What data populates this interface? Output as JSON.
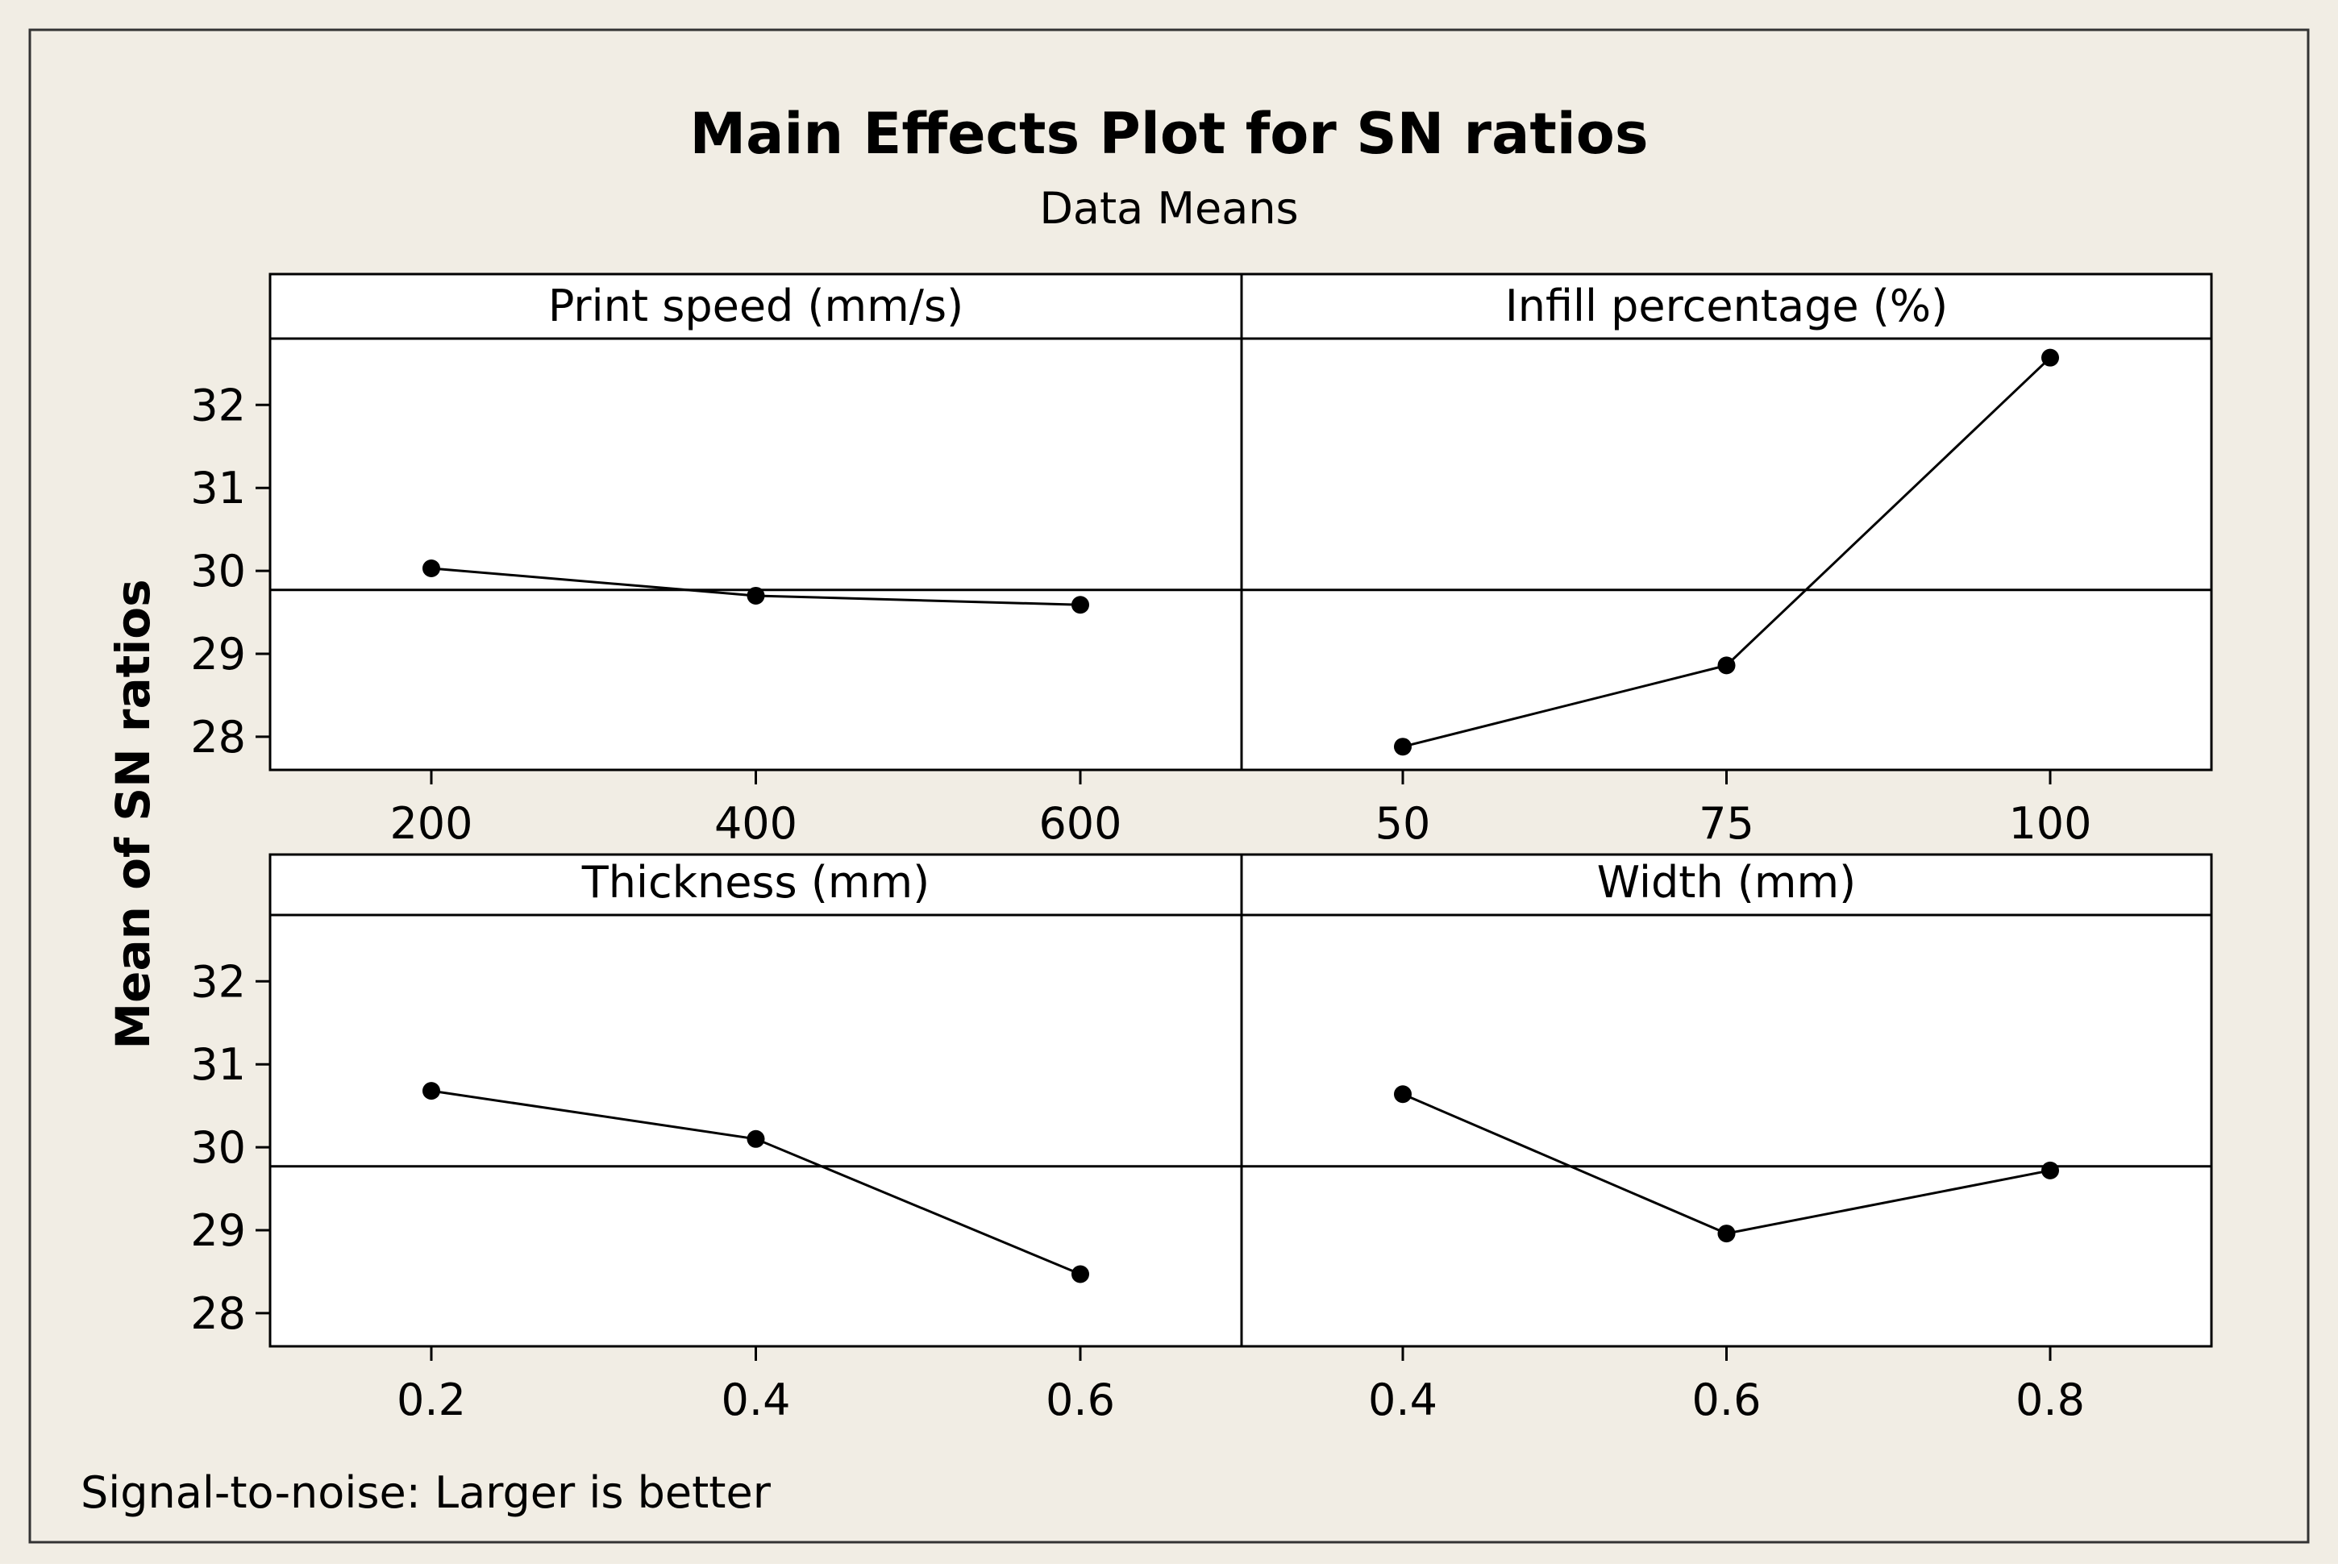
{
  "chart_data": {
    "type": "line",
    "title": "Main Effects Plot for SN ratios",
    "subtitle": "Data Means",
    "ylabel": "Mean of SN ratios",
    "footnote": "Signal-to-noise: Larger is better",
    "ylim": [
      27.6,
      32.8
    ],
    "yticks": [
      28,
      29,
      30,
      31,
      32
    ],
    "overall_mean": 29.77,
    "colors": {
      "background": "#f1ede4",
      "plot": "#ffffff",
      "line": "#000000"
    },
    "panels": [
      {
        "label": "Print speed (mm/s)",
        "xticks": [
          "200",
          "400",
          "600"
        ],
        "values": [
          30.03,
          29.7,
          29.59
        ]
      },
      {
        "label": "Infill percentage (%)",
        "xticks": [
          "50",
          "75",
          "100"
        ],
        "values": [
          27.88,
          28.86,
          32.57
        ]
      },
      {
        "label": "Thickness (mm)",
        "xticks": [
          "0.2",
          "0.4",
          "0.6"
        ],
        "values": [
          30.68,
          30.1,
          28.47
        ]
      },
      {
        "label": "Width (mm)",
        "xticks": [
          "0.4",
          "0.6",
          "0.8"
        ],
        "values": [
          30.64,
          28.96,
          29.72
        ]
      }
    ]
  }
}
